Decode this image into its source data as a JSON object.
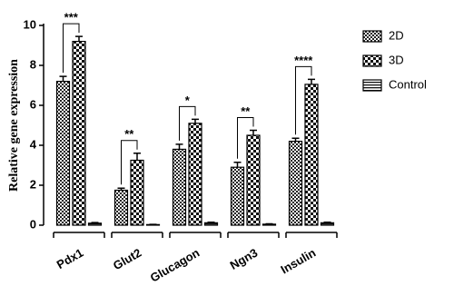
{
  "chart_data": {
    "type": "bar",
    "y_label": "Relative gene expression",
    "categories": [
      "Pdx1",
      "Glut2",
      "Glucagon",
      "Ngn3",
      "Insulin"
    ],
    "series": [
      {
        "name": "2D",
        "pattern": "checker",
        "values": [
          7.2,
          1.75,
          3.8,
          2.9,
          4.2
        ],
        "errors": [
          0.25,
          0.1,
          0.25,
          0.25,
          0.15
        ]
      },
      {
        "name": "3D",
        "pattern": "checker-large",
        "values": [
          9.2,
          3.25,
          5.1,
          4.5,
          7.05
        ],
        "errors": [
          0.25,
          0.35,
          0.2,
          0.25,
          0.25
        ]
      },
      {
        "name": "Control",
        "pattern": "stripes",
        "values": [
          0.1,
          0.03,
          0.12,
          0.05,
          0.12
        ],
        "errors": [
          0.03,
          0.01,
          0.03,
          0.02,
          0.03
        ]
      }
    ],
    "significance": [
      "***",
      "**",
      "*",
      "**",
      "****"
    ],
    "ylim": [
      0,
      10
    ],
    "yticks": [
      0,
      2,
      4,
      6,
      8,
      10
    ],
    "grid": false,
    "legend": "right"
  }
}
